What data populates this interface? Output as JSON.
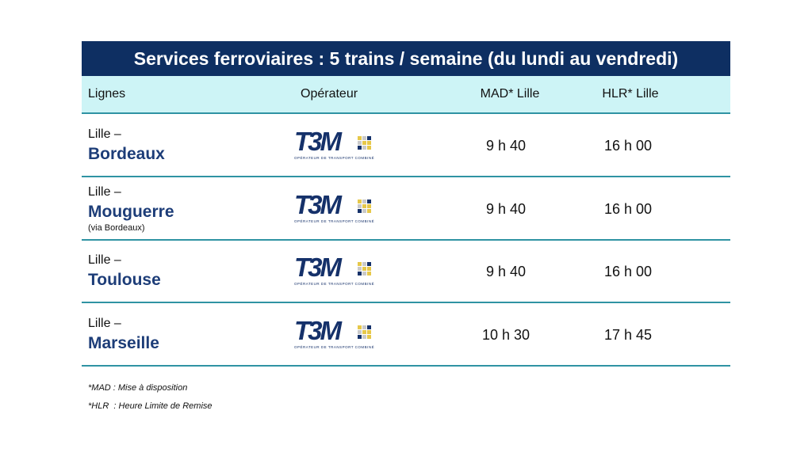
{
  "title": "Services ferroviaires : 5 trains / semaine (du lundi au vendredi)",
  "table": {
    "headers": [
      "Lignes",
      "Opérateur",
      "MAD* Lille",
      "HLR* Lille"
    ],
    "rows": [
      {
        "origin": "Lille –",
        "destination": "Bordeaux",
        "operator": {
          "name": "T3M",
          "tagline": "OPÉRATEUR DE TRANSPORT COMBINÉ"
        },
        "mad": "9 h 40",
        "hlr": "16 h 00"
      },
      {
        "origin": "Lille –",
        "destination": "Mouguerre",
        "note": "(via Bordeaux)",
        "operator": {
          "name": "T3M",
          "tagline": "OPÉRATEUR DE TRANSPORT COMBINÉ"
        },
        "mad": "9 h 40",
        "hlr": "16 h 00"
      },
      {
        "origin": "Lille –",
        "destination": "Toulouse",
        "operator": {
          "name": "T3M",
          "tagline": "OPÉRATEUR DE TRANSPORT COMBINÉ"
        },
        "mad": "9 h 40",
        "hlr": "16 h 00"
      },
      {
        "origin": "Lille –",
        "destination": "Marseille",
        "operator": {
          "name": "T3M",
          "tagline": "OPÉRATEUR DE TRANSPORT COMBINÉ"
        },
        "mad": "10 h 30",
        "hlr": "17 h 45"
      }
    ]
  },
  "footnotes": [
    "*MAD : Mise à disposition",
    "*HLR  : Heure Limite de Remise"
  ]
}
